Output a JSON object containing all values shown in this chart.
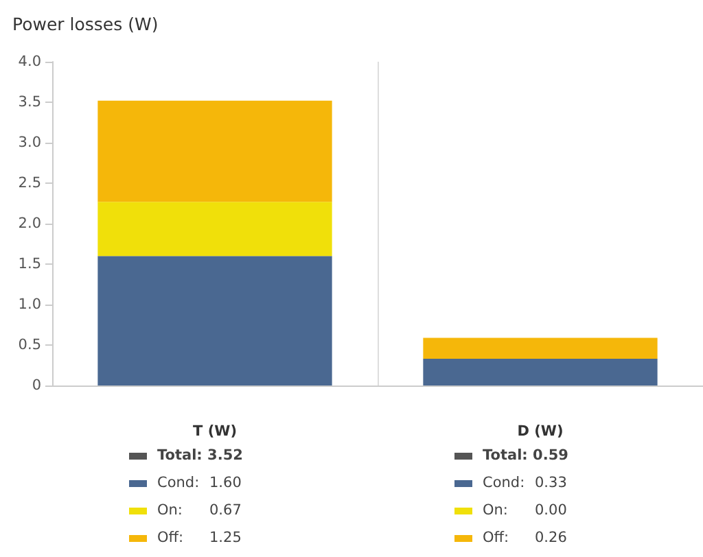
{
  "chart_data": {
    "type": "bar",
    "title": "Power losses (W)",
    "categories": [
      "T (W)",
      "D (W)"
    ],
    "stacked": true,
    "series": [
      {
        "name": "Cond:",
        "color": "#4a6891",
        "values": [
          1.6,
          0.33
        ],
        "value_labels": [
          "1.60",
          "0.33"
        ]
      },
      {
        "name": "On:",
        "color": "#f0e00a",
        "values": [
          0.67,
          0.0
        ],
        "value_labels": [
          "0.67",
          "0.00"
        ]
      },
      {
        "name": "Off:",
        "color": "#f5b70a",
        "values": [
          1.25,
          0.26
        ],
        "value_labels": [
          "1.25",
          "0.26"
        ]
      }
    ],
    "annotations": [
      "Total: 3.52",
      "Total: 0.59"
    ],
    "ylim": [
      0,
      4
    ],
    "yticks": [
      0,
      0.5,
      {
        "value": 1,
        "label": "1.0"
      },
      1.5,
      {
        "value": 2,
        "label": "2.0"
      },
      2.5,
      {
        "value": 3,
        "label": "3.0"
      },
      3.5,
      {
        "value": 4,
        "label": "4.0"
      }
    ],
    "grid": "x",
    "legend": "bottom"
  }
}
